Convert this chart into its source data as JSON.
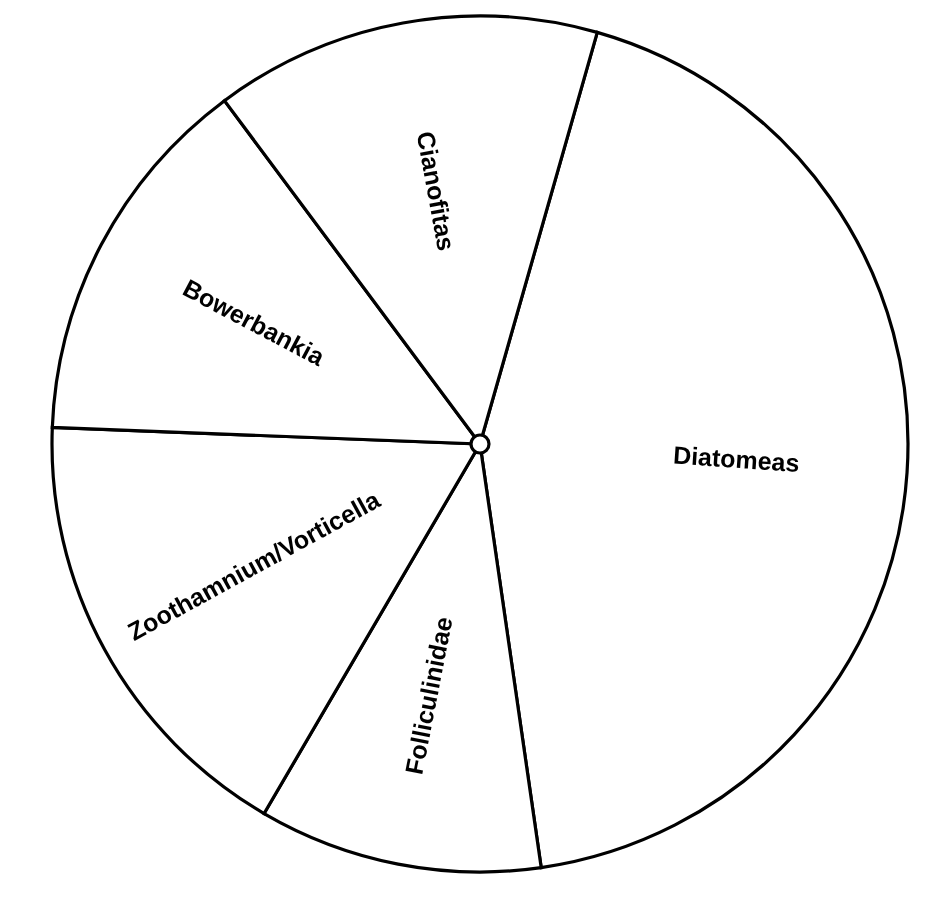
{
  "chart_data": {
    "type": "pie",
    "categories": [
      "Diatomeas",
      "Folliculinidae",
      "Zoothamnium/Vorticella",
      "Bowerbankia",
      "Cianofitas"
    ],
    "values": [
      43.3,
      10.7,
      17.2,
      14.2,
      14.6
    ],
    "colors": [
      "#ffffff",
      "#ffffff",
      "#ffffff",
      "#ffffff",
      "#ffffff"
    ]
  }
}
